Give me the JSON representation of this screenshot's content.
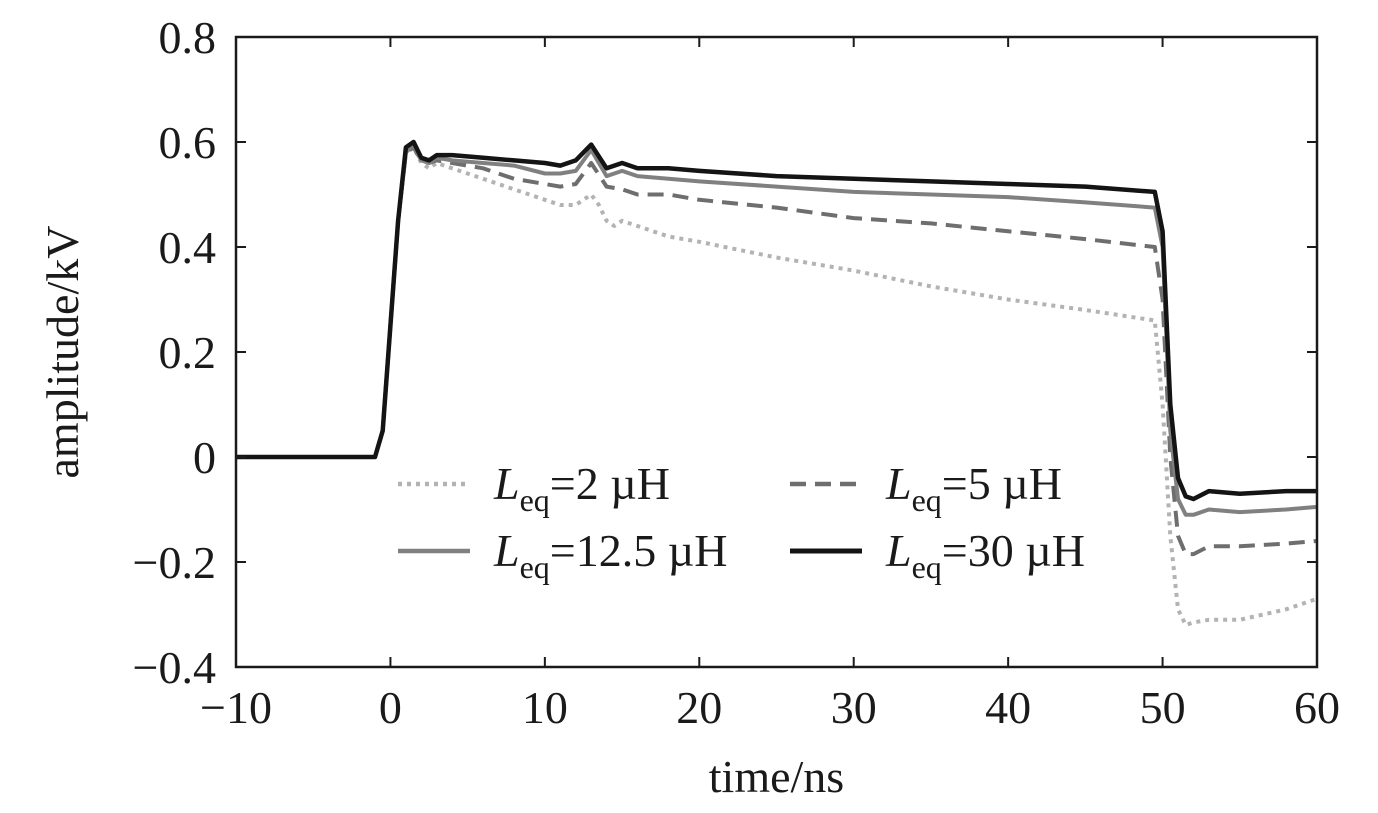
{
  "chart_data": {
    "type": "line",
    "xlabel": "time/ns",
    "ylabel": "amplitude/kV",
    "xlim": [
      -10,
      60
    ],
    "ylim": [
      -0.4,
      0.8
    ],
    "xticks": [
      -10,
      0,
      10,
      20,
      30,
      40,
      50,
      60
    ],
    "yticks": [
      -0.4,
      -0.2,
      0,
      0.2,
      0.4,
      0.6,
      0.8
    ],
    "xtick_labels": [
      "−10",
      "0",
      "10",
      "20",
      "30",
      "40",
      "50",
      "60"
    ],
    "ytick_labels": [
      "−0.4",
      "−0.2",
      "0",
      "0.2",
      "0.4",
      "0.6",
      "0.8"
    ],
    "grid": false,
    "legend_position": "center-bottom",
    "series": [
      {
        "name": "Leq=2 µH",
        "label_main": "L",
        "label_sub": "eq",
        "label_rest": "=2 µH",
        "color": "#b3b3b3",
        "dash": "4 5",
        "width": 4,
        "x": [
          -10,
          -1,
          -0.5,
          0,
          0.5,
          1,
          1.5,
          2,
          2.5,
          3,
          4,
          6,
          8,
          10,
          11,
          12,
          13,
          13.5,
          14,
          14.5,
          15,
          16,
          18,
          20,
          25,
          30,
          35,
          40,
          45,
          49.5,
          50,
          50.5,
          51,
          51.5,
          52,
          53,
          55,
          58,
          60
        ],
        "y": [
          0,
          0,
          0.05,
          0.25,
          0.45,
          0.58,
          0.59,
          0.56,
          0.55,
          0.56,
          0.55,
          0.53,
          0.51,
          0.49,
          0.48,
          0.48,
          0.5,
          0.48,
          0.45,
          0.44,
          0.45,
          0.44,
          0.42,
          0.41,
          0.38,
          0.355,
          0.325,
          0.3,
          0.28,
          0.26,
          0.1,
          -0.15,
          -0.29,
          -0.32,
          -0.315,
          -0.31,
          -0.31,
          -0.29,
          -0.27
        ]
      },
      {
        "name": "Leq=5 µH",
        "label_main": "L",
        "label_sub": "eq",
        "label_rest": "=5 µH",
        "color": "#6e6e6e",
        "dash": "16 9",
        "width": 4,
        "x": [
          -10,
          -1,
          -0.5,
          0,
          0.5,
          1,
          1.5,
          2,
          2.5,
          3,
          4,
          6,
          8,
          10,
          11,
          12,
          13,
          14,
          15,
          16,
          18,
          20,
          25,
          30,
          35,
          40,
          45,
          49.5,
          50,
          50.5,
          51,
          51.5,
          52,
          53,
          55,
          58,
          60
        ],
        "y": [
          0,
          0,
          0.05,
          0.25,
          0.45,
          0.58,
          0.59,
          0.565,
          0.56,
          0.565,
          0.56,
          0.55,
          0.53,
          0.52,
          0.515,
          0.52,
          0.56,
          0.515,
          0.51,
          0.5,
          0.5,
          0.49,
          0.475,
          0.455,
          0.445,
          0.43,
          0.415,
          0.4,
          0.3,
          0.0,
          -0.15,
          -0.185,
          -0.185,
          -0.17,
          -0.17,
          -0.165,
          -0.16
        ]
      },
      {
        "name": "Leq=12.5 µH",
        "label_main": "L",
        "label_sub": "eq",
        "label_rest": "=12.5 µH",
        "color": "#808080",
        "dash": "",
        "width": 4,
        "x": [
          -10,
          -1,
          -0.5,
          0,
          0.5,
          1,
          1.5,
          2,
          2.5,
          3,
          4,
          6,
          8,
          10,
          11,
          12,
          13,
          14,
          15,
          16,
          18,
          20,
          25,
          30,
          35,
          40,
          45,
          49.5,
          50,
          50.5,
          51,
          51.5,
          52,
          53,
          55,
          58,
          60
        ],
        "y": [
          0,
          0,
          0.05,
          0.25,
          0.45,
          0.58,
          0.595,
          0.565,
          0.56,
          0.57,
          0.565,
          0.56,
          0.555,
          0.54,
          0.54,
          0.545,
          0.585,
          0.535,
          0.545,
          0.535,
          0.53,
          0.525,
          0.515,
          0.505,
          0.5,
          0.495,
          0.485,
          0.475,
          0.4,
          0.05,
          -0.08,
          -0.11,
          -0.11,
          -0.1,
          -0.105,
          -0.1,
          -0.095
        ]
      },
      {
        "name": "Leq=30 µH",
        "label_main": "L",
        "label_sub": "eq",
        "label_rest": "=30 µH",
        "color": "#141414",
        "dash": "",
        "width": 4.5,
        "x": [
          -10,
          -1,
          -0.5,
          0,
          0.5,
          1,
          1.5,
          2,
          2.5,
          3,
          4,
          6,
          8,
          10,
          11,
          12,
          13,
          14,
          15,
          16,
          18,
          20,
          25,
          30,
          35,
          40,
          45,
          49.5,
          50,
          50.5,
          51,
          51.5,
          52,
          53,
          55,
          58,
          60
        ],
        "y": [
          0,
          0,
          0.05,
          0.25,
          0.45,
          0.59,
          0.6,
          0.57,
          0.565,
          0.575,
          0.575,
          0.57,
          0.565,
          0.56,
          0.555,
          0.565,
          0.595,
          0.55,
          0.56,
          0.55,
          0.55,
          0.545,
          0.535,
          0.53,
          0.525,
          0.52,
          0.515,
          0.505,
          0.43,
          0.1,
          -0.04,
          -0.075,
          -0.08,
          -0.065,
          -0.07,
          -0.065,
          -0.065
        ]
      }
    ]
  }
}
